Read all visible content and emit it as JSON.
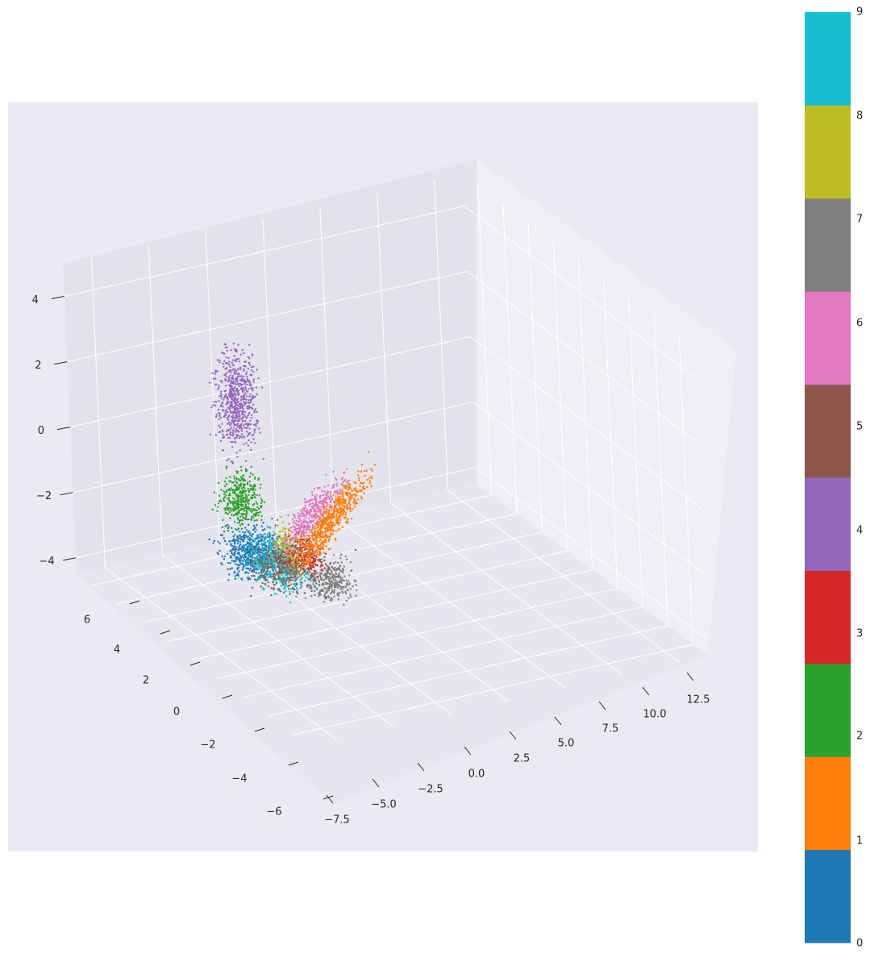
{
  "chart_data": {
    "type": "scatter",
    "projection": "3d",
    "background": "#eaeaf2",
    "grid": true,
    "legend": "colorbar-right",
    "x_axis": {
      "range": [
        -9,
        14
      ],
      "ticks": [
        -7.5,
        -5.0,
        -2.5,
        0.0,
        2.5,
        5.0,
        7.5,
        10.0,
        12.5
      ],
      "tick_labels": [
        "−7.5",
        "−5.0",
        "−2.5",
        "0.0",
        "2.5",
        "5.0",
        "7.5",
        "10.0",
        "12.5"
      ]
    },
    "y_axis": {
      "range": [
        -7,
        7
      ],
      "ticks": [
        -6,
        -4,
        -2,
        0,
        2,
        4,
        6
      ],
      "tick_labels": [
        "−6",
        "−4",
        "−2",
        "0",
        "2",
        "4",
        "6"
      ]
    },
    "z_axis": {
      "range": [
        -4.5,
        5
      ],
      "ticks": [
        -4,
        -2,
        0,
        2,
        4
      ],
      "tick_labels": [
        "−4",
        "−2",
        "0",
        "2",
        "4"
      ]
    },
    "colorbar": {
      "ticks": [
        "0",
        "1",
        "2",
        "3",
        "4",
        "5",
        "6",
        "7",
        "8",
        "9"
      ],
      "colors": [
        "#1f77b4",
        "#ff7f0e",
        "#2ca02c",
        "#d62728",
        "#9467bd",
        "#8c564b",
        "#e377c2",
        "#7f7f7f",
        "#bcbd22",
        "#17becf"
      ]
    },
    "clusters": [
      {
        "label": "4",
        "color": "#9467bd",
        "center": [
          -8.0,
          1.5,
          0.0
        ],
        "spread": [
          0.35,
          0.35,
          0.75
        ],
        "count": 650
      },
      {
        "label": "2",
        "color": "#2ca02c",
        "center": [
          -6.8,
          1.9,
          -2.7
        ],
        "spread": [
          0.5,
          0.35,
          0.45
        ],
        "count": 400
      },
      {
        "label": "0",
        "color": "#1f77b4",
        "center": [
          -4.6,
          2.3,
          -3.8
        ],
        "spread": [
          1.0,
          0.45,
          0.3
        ],
        "count": 650
      },
      {
        "label": "9",
        "color": "#17becf",
        "center": [
          -1.8,
          2.4,
          -3.5
        ],
        "spread": [
          1.2,
          0.45,
          0.3
        ],
        "count": 550
      },
      {
        "label": "7",
        "color": "#7f7f7f",
        "center": [
          -1.6,
          0.7,
          -4.3
        ],
        "spread": [
          0.5,
          0.35,
          0.3
        ],
        "count": 300
      },
      {
        "label": "5",
        "color": "#8c564b",
        "center": [
          1.6,
          3.2,
          -2.5
        ],
        "spread": [
          0.9,
          0.6,
          0.4
        ],
        "count": 450
      },
      {
        "label": "8",
        "color": "#bcbd22",
        "center": [
          3.2,
          3.7,
          -1.4
        ],
        "spread": [
          0.5,
          0.3,
          0.3
        ],
        "count": 150
      },
      {
        "label": "3",
        "color": "#d62728",
        "center": [
          4.6,
          3.7,
          -1.4
        ],
        "spread": [
          0.5,
          0.3,
          0.35
        ],
        "count": 120
      },
      {
        "label": "6",
        "color": "#e377c2",
        "center": [
          7.2,
          4.2,
          0.5
        ],
        "spread": [
          1.4,
          0.3,
          0.9
        ],
        "count": 400
      },
      {
        "label": "1",
        "color": "#ff7f0e",
        "center": [
          6.8,
          3.5,
          0.0
        ],
        "spread": [
          2.2,
          0.3,
          1.4
        ],
        "count": 650
      }
    ]
  }
}
